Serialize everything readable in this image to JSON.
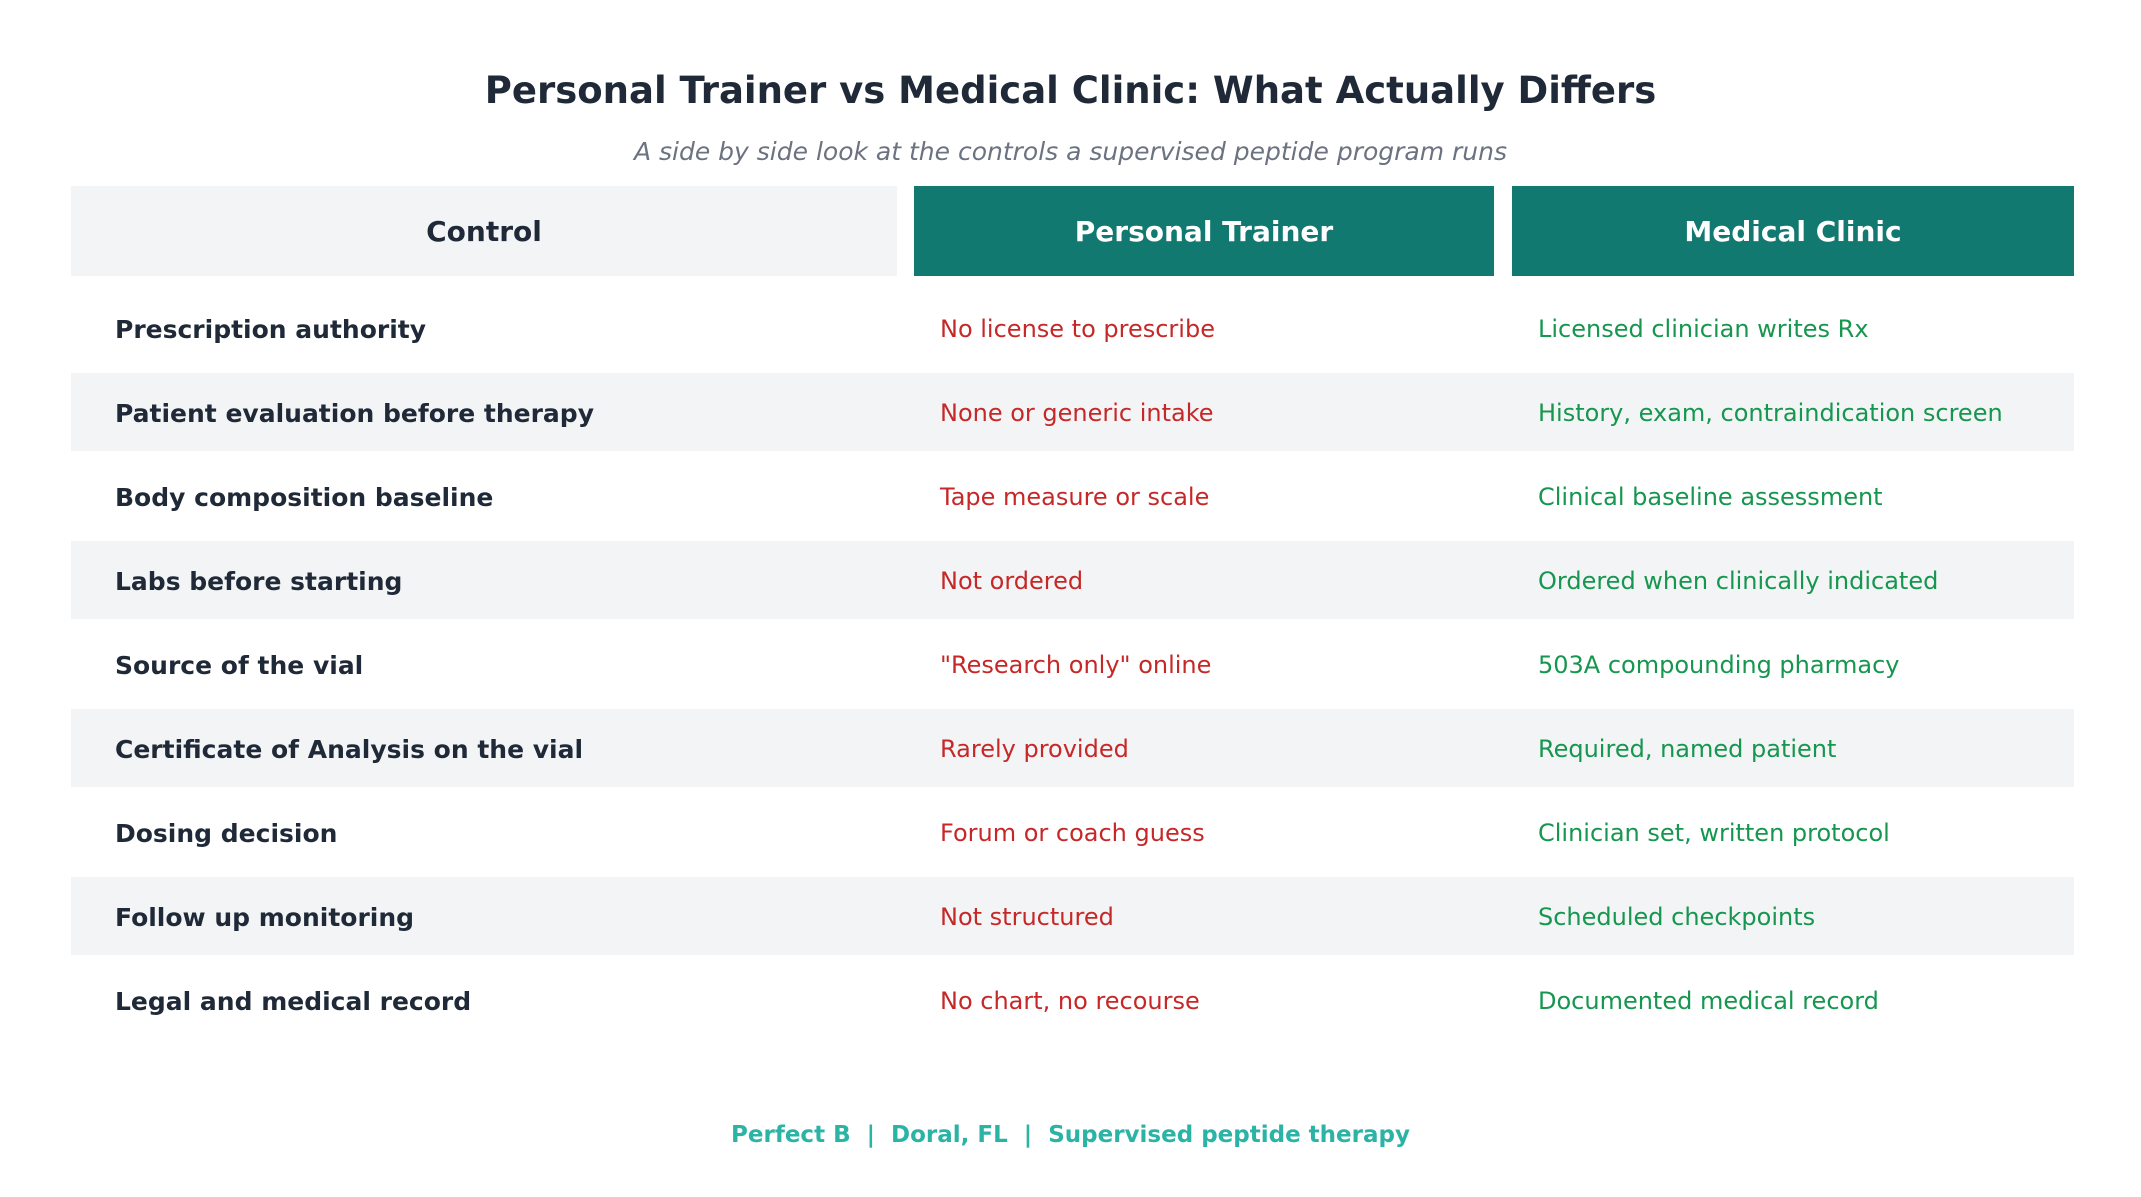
{
  "title": "Personal Trainer vs Medical Clinic: What Actually Differs",
  "subtitle": "A side by side look at the controls a supervised peptide program runs",
  "headers": {
    "control": "Control",
    "trainer": "Personal Trainer",
    "clinic": "Medical Clinic"
  },
  "rows": [
    {
      "control": "Prescription authority",
      "trainer": "No license to prescribe",
      "clinic": "Licensed clinician writes Rx"
    },
    {
      "control": "Patient evaluation before therapy",
      "trainer": "None or generic intake",
      "clinic": "History, exam, contraindication screen"
    },
    {
      "control": "Body composition baseline",
      "trainer": "Tape measure or scale",
      "clinic": "Clinical baseline assessment"
    },
    {
      "control": "Labs before starting",
      "trainer": "Not ordered",
      "clinic": "Ordered when clinically indicated"
    },
    {
      "control": "Source of the vial",
      "trainer": "\"Research only\" online",
      "clinic": "503A compounding pharmacy"
    },
    {
      "control": "Certificate of Analysis on the vial",
      "trainer": "Rarely provided",
      "clinic": "Required, named patient"
    },
    {
      "control": "Dosing decision",
      "trainer": "Forum or coach guess",
      "clinic": "Clinician set, written protocol"
    },
    {
      "control": "Follow up monitoring",
      "trainer": "Not structured",
      "clinic": "Scheduled checkpoints"
    },
    {
      "control": "Legal and medical record",
      "trainer": "No chart, no recourse",
      "clinic": "Documented medical record"
    }
  ],
  "footer": "Perfect B  |  Doral, FL  |  Supervised peptide therapy",
  "colors": {
    "header_accent": "#11796f",
    "negative_text": "#c62828",
    "positive_text": "#16964f",
    "footer_text": "#2bb3a6",
    "row_shade": "#f3f4f6"
  }
}
